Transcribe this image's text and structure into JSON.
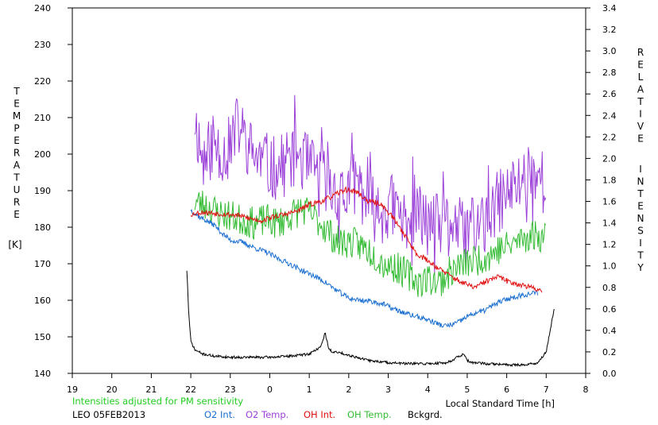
{
  "chart_data": {
    "type": "line",
    "x_ticks": [
      "19",
      "20",
      "21",
      "22",
      "23",
      "0",
      "1",
      "2",
      "3",
      "4",
      "5",
      "6",
      "7",
      "8"
    ],
    "xlabel": "Local Standard Time [h]",
    "ylabel_left_letters": [
      "T",
      "E",
      "M",
      "P",
      "E",
      "R",
      "A",
      "T",
      "U",
      "R",
      "E"
    ],
    "ylabel_left_unit": "[K]",
    "ylabel_right_word1": [
      "R",
      "E",
      "L",
      "A",
      "T",
      "I",
      "V",
      "E"
    ],
    "ylabel_right_word2": [
      "I",
      "N",
      "T",
      "E",
      "N",
      "S",
      "I",
      "T",
      "Y"
    ],
    "y_left_ticks": [
      "140",
      "150",
      "160",
      "170",
      "180",
      "190",
      "200",
      "210",
      "220",
      "230",
      "240"
    ],
    "y_right_ticks": [
      "0.0",
      "0.2",
      "0.4",
      "0.6",
      "0.8",
      "1.0",
      "1.2",
      "1.4",
      "1.6",
      "1.8",
      "2.0",
      "2.2",
      "2.4",
      "2.6",
      "2.8",
      "3.0",
      "3.2",
      "3.4"
    ],
    "ylim_left": [
      140,
      240
    ],
    "ylim_right": [
      0,
      3.4
    ],
    "xlim_hours_after_19": [
      0,
      13
    ],
    "grid": false,
    "note": "Intensities adjusted for PM sensitivity",
    "station_date": "LEO 05FEB2013",
    "legend": [
      {
        "name": "O2 Int.",
        "color": "#1a6fd0"
      },
      {
        "name": "O2 Temp.",
        "color": "#9b40d8"
      },
      {
        "name": "OH Int.",
        "color": "#e01010"
      },
      {
        "name": "OH Temp.",
        "color": "#33bb33"
      },
      {
        "name": "Bckgrd.",
        "color": "#000000"
      }
    ],
    "series": [
      {
        "name": "O2 Temp.",
        "axis": "left",
        "color": "#9b40d8",
        "x": [
          22.1,
          22.3,
          22.6,
          22.9,
          23.2,
          23.5,
          23.8,
          24.1,
          24.4,
          24.7,
          25.0,
          25.3,
          25.6,
          25.9,
          26.2,
          26.5,
          26.8,
          27.1,
          27.4,
          27.7,
          28.0,
          28.3,
          28.6,
          28.9,
          29.2,
          29.5,
          29.8,
          30.0,
          30.2,
          30.4,
          30.6,
          30.8,
          31.0
        ],
        "y": [
          210,
          198,
          203,
          200,
          208,
          201,
          198,
          196,
          197,
          201,
          196,
          195,
          190,
          188,
          193,
          186,
          184,
          186,
          182,
          184,
          181,
          180,
          182,
          178,
          180,
          181,
          187,
          189,
          191,
          193,
          196,
          194,
          192
        ]
      },
      {
        "name": "OH Temp.",
        "axis": "left",
        "color": "#33bb33",
        "x": [
          22.1,
          22.4,
          22.7,
          23.0,
          23.3,
          23.6,
          23.9,
          24.2,
          24.5,
          24.8,
          25.1,
          25.4,
          25.7,
          26.0,
          26.3,
          26.6,
          26.9,
          27.2,
          27.5,
          27.8,
          28.0,
          28.3,
          28.6,
          28.9,
          29.2,
          29.5,
          29.8,
          30.1,
          30.4,
          30.7,
          31.0
        ],
        "y": [
          187,
          186,
          184,
          183,
          182,
          181,
          182,
          181,
          183,
          185,
          183,
          180,
          176,
          176,
          175,
          173,
          170,
          169,
          167,
          165,
          166,
          165,
          168,
          170,
          171,
          172,
          174,
          175,
          177,
          178,
          177
        ]
      },
      {
        "name": "O2 Int.",
        "axis": "right",
        "color": "#1a6fd0",
        "x": [
          22.0,
          22.2,
          22.4,
          22.6,
          22.8,
          23.0,
          23.3,
          23.6,
          23.9,
          24.2,
          24.5,
          24.8,
          25.1,
          25.4,
          25.7,
          26.0,
          26.3,
          26.6,
          26.9,
          27.2,
          27.5,
          27.8,
          28.0,
          28.2,
          28.4,
          28.6,
          28.8,
          29.0,
          29.2,
          29.4,
          29.6,
          29.8,
          30.0,
          30.2,
          30.4,
          30.6,
          30.8
        ],
        "y": [
          1.52,
          1.46,
          1.42,
          1.38,
          1.3,
          1.24,
          1.22,
          1.17,
          1.13,
          1.07,
          1.02,
          0.96,
          0.91,
          0.85,
          0.77,
          0.7,
          0.68,
          0.67,
          0.64,
          0.59,
          0.55,
          0.52,
          0.5,
          0.47,
          0.44,
          0.45,
          0.48,
          0.53,
          0.56,
          0.58,
          0.62,
          0.66,
          0.69,
          0.71,
          0.73,
          0.74,
          0.75
        ]
      },
      {
        "name": "OH Int.",
        "axis": "right",
        "color": "#e01010",
        "x": [
          22.0,
          22.3,
          22.6,
          22.9,
          23.2,
          23.5,
          23.8,
          24.1,
          24.4,
          24.7,
          25.0,
          25.3,
          25.6,
          25.9,
          26.2,
          26.5,
          26.8,
          27.1,
          27.4,
          27.7,
          28.0,
          28.3,
          28.6,
          28.9,
          29.2,
          29.5,
          29.8,
          30.0,
          30.3,
          30.6,
          30.9
        ],
        "y": [
          1.48,
          1.5,
          1.49,
          1.48,
          1.47,
          1.44,
          1.42,
          1.46,
          1.48,
          1.51,
          1.57,
          1.6,
          1.65,
          1.71,
          1.69,
          1.6,
          1.58,
          1.46,
          1.3,
          1.12,
          1.05,
          0.97,
          0.9,
          0.84,
          0.8,
          0.86,
          0.9,
          0.86,
          0.83,
          0.8,
          0.77
        ]
      },
      {
        "name": "Bckgrd.",
        "axis": "right",
        "color": "#000000",
        "x": [
          21.9,
          21.95,
          22.0,
          22.1,
          22.3,
          22.6,
          23.0,
          23.5,
          24.0,
          24.5,
          25.0,
          25.3,
          25.4,
          25.5,
          25.6,
          25.8,
          26.0,
          26.5,
          27.0,
          27.5,
          28.0,
          28.5,
          28.9,
          29.0,
          29.1,
          29.5,
          30.0,
          30.5,
          30.8,
          31.0,
          31.1,
          31.2
        ],
        "y": [
          0.96,
          0.55,
          0.3,
          0.22,
          0.18,
          0.16,
          0.15,
          0.15,
          0.15,
          0.16,
          0.18,
          0.25,
          0.38,
          0.22,
          0.2,
          0.19,
          0.17,
          0.12,
          0.1,
          0.09,
          0.09,
          0.1,
          0.18,
          0.12,
          0.1,
          0.09,
          0.08,
          0.08,
          0.1,
          0.2,
          0.4,
          0.6
        ]
      }
    ]
  }
}
